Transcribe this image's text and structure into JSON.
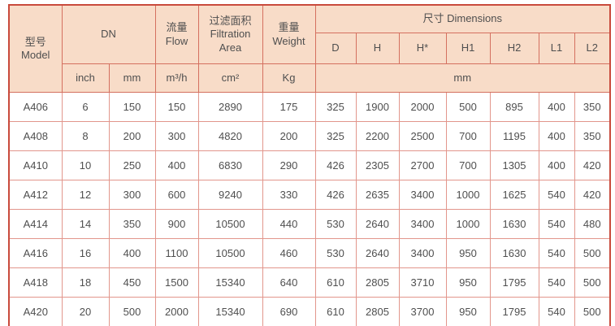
{
  "table": {
    "header": {
      "model": "型号\nModel",
      "dn": "DN",
      "flow": "流量\nFlow",
      "filtration": "过滤面积\nFiltration\nArea",
      "weight": "重量\nWeight",
      "dimensions": "尺寸 Dimensions",
      "dim_cols": [
        "D",
        "H",
        "H*",
        "H1",
        "H2",
        "L1",
        "L2"
      ],
      "units": {
        "inch": "inch",
        "mm": "mm",
        "flow": "m³/h",
        "filtration": "cm²",
        "weight": "Kg",
        "dim": "mm"
      }
    },
    "columns": [
      "Model",
      "DN inch",
      "DN mm",
      "Flow m³/h",
      "Filtration Area cm²",
      "Weight Kg",
      "D",
      "H",
      "H*",
      "H1",
      "H2",
      "L1",
      "L2"
    ],
    "rows": [
      [
        "A406",
        "6",
        "150",
        "150",
        "2890",
        "175",
        "325",
        "1900",
        "2000",
        "500",
        "895",
        "400",
        "350"
      ],
      [
        "A408",
        "8",
        "200",
        "300",
        "4820",
        "200",
        "325",
        "2200",
        "2500",
        "700",
        "1195",
        "400",
        "350"
      ],
      [
        "A410",
        "10",
        "250",
        "400",
        "6830",
        "290",
        "426",
        "2305",
        "2700",
        "700",
        "1305",
        "400",
        "420"
      ],
      [
        "A412",
        "12",
        "300",
        "600",
        "9240",
        "330",
        "426",
        "2635",
        "3400",
        "1000",
        "1625",
        "540",
        "420"
      ],
      [
        "A414",
        "14",
        "350",
        "900",
        "10500",
        "440",
        "530",
        "2640",
        "3400",
        "1000",
        "1630",
        "540",
        "480"
      ],
      [
        "A416",
        "16",
        "400",
        "1100",
        "10500",
        "460",
        "530",
        "2640",
        "3400",
        "950",
        "1630",
        "540",
        "500"
      ],
      [
        "A418",
        "18",
        "450",
        "1500",
        "15340",
        "640",
        "610",
        "2805",
        "3710",
        "950",
        "1795",
        "540",
        "500"
      ],
      [
        "A420",
        "20",
        "500",
        "2000",
        "15340",
        "690",
        "610",
        "2805",
        "3700",
        "950",
        "1795",
        "540",
        "500"
      ]
    ]
  },
  "colors": {
    "header_bg": "#f8dcc8",
    "outer_border": "#c94a3c",
    "header_grid": "#d4705f",
    "body_grid": "#e2968c",
    "text": "#4f4f4f"
  }
}
